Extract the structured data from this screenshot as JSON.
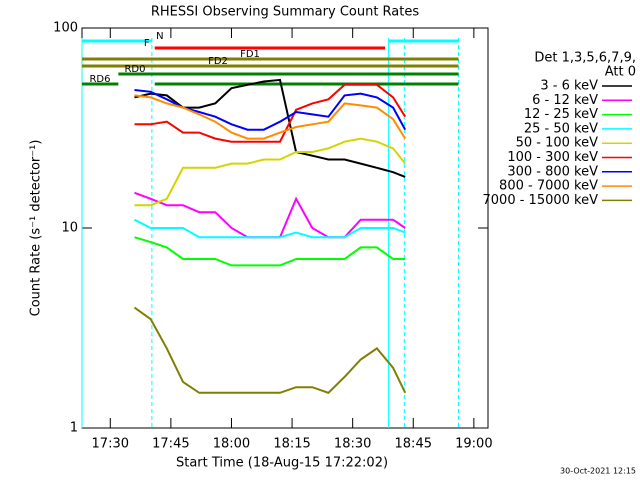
{
  "chart_data": {
    "type": "line",
    "title": "RHESSI Observing Summary Count Rates",
    "x_label": "Start Time (18-Aug-15 17:22:02)",
    "y_label": "Count Rate (s⁻¹ detector⁻¹)",
    "legend_title": [
      "Det 1,3,5,6,7,9,",
      "Att 0"
    ],
    "footer": "30-Oct-2021 12:15",
    "log_y": true,
    "xlim": [
      1043,
      1143.5
    ],
    "xticks": [
      {
        "value": 1050,
        "label": "17:30"
      },
      {
        "value": 1065,
        "label": "17:45"
      },
      {
        "value": 1080,
        "label": "18:00"
      },
      {
        "value": 1095,
        "label": "18:15"
      },
      {
        "value": 1110,
        "label": "18:30"
      },
      {
        "value": 1125,
        "label": "18:45"
      },
      {
        "value": 1140,
        "label": "19:00"
      }
    ],
    "ylim": [
      1,
      100
    ],
    "yticks": [
      1,
      10,
      100
    ],
    "x": [
      1056,
      1060,
      1064,
      1068,
      1072,
      1076,
      1080,
      1084,
      1088,
      1092,
      1096,
      1100,
      1104,
      1108,
      1112,
      1116,
      1120,
      1123
    ],
    "series": [
      {
        "name": "3 - 6 keV",
        "color": "#000000",
        "values": [
          45,
          47,
          46,
          40,
          40,
          42,
          50,
          52,
          54,
          55,
          24,
          23,
          22,
          22,
          21,
          20,
          19,
          18
        ]
      },
      {
        "name": "6 - 12 keV",
        "color": "#ff00ff",
        "values": [
          15,
          14,
          13,
          13,
          12,
          12,
          10,
          9,
          9,
          9,
          14,
          10,
          9,
          9,
          11,
          11,
          11,
          10
        ]
      },
      {
        "name": "12 - 25 keV",
        "color": "#00ff00",
        "values": [
          9,
          8.5,
          8,
          7,
          7,
          7,
          6.5,
          6.5,
          6.5,
          6.5,
          7,
          7,
          7,
          7,
          8,
          8,
          7,
          7
        ]
      },
      {
        "name": "25 - 50 keV",
        "color": "#00ffff",
        "values": [
          11,
          10,
          10,
          10,
          9,
          9,
          9,
          9,
          9,
          9,
          9.5,
          9,
          9,
          9,
          10,
          10,
          10,
          9.5
        ]
      },
      {
        "name": "50 - 100 keV",
        "color": "#d4d400",
        "values": [
          13,
          13,
          14,
          20,
          20,
          20,
          21,
          21,
          22,
          22,
          24,
          24,
          25,
          27,
          28,
          27,
          25,
          21
        ]
      },
      {
        "name": "100 - 300 keV",
        "color": "#ff0000",
        "values": [
          33,
          33,
          34,
          30,
          30,
          28,
          27,
          27,
          27,
          27,
          39,
          42,
          44,
          52,
          52,
          52,
          45,
          36
        ]
      },
      {
        "name": "300 - 800 keV",
        "color": "#0000ff",
        "values": [
          49,
          48,
          44,
          40,
          38,
          36,
          33,
          31,
          31,
          34,
          38,
          37,
          36,
          46,
          47,
          45,
          40,
          31
        ]
      },
      {
        "name": "800 - 7000 keV",
        "color": "#ff8c00",
        "values": [
          46,
          45,
          42,
          40,
          37,
          34,
          30,
          28,
          28,
          30,
          32,
          33,
          34,
          42,
          41,
          40,
          35,
          28
        ]
      },
      {
        "name": "7000 - 15000 keV",
        "color": "#808000",
        "values": [
          4,
          3.5,
          2.5,
          1.7,
          1.5,
          1.5,
          1.5,
          1.5,
          1.5,
          1.5,
          1.6,
          1.6,
          1.5,
          1.8,
          2.2,
          2.5,
          2,
          1.5
        ]
      }
    ],
    "flags": [
      {
        "label": "N",
        "color": "#00ffff",
        "segments": [
          [
            1043,
            1060.3
          ],
          [
            1118.9,
            1136.2
          ]
        ]
      },
      {
        "label": "F",
        "color": "#ff0000",
        "segments": [
          [
            1061,
            1118
          ]
        ]
      },
      {
        "label": "FD1",
        "color": "#808000",
        "segments": [
          [
            1043,
            1136.2
          ]
        ]
      },
      {
        "label": "FD2",
        "color": "#808000",
        "segments": [
          [
            1043,
            1136.2
          ]
        ]
      },
      {
        "label": "RD0",
        "color": "#008000",
        "segments": [
          [
            1052,
            1136.2
          ]
        ]
      },
      {
        "label": "RD6",
        "color": "#008000",
        "segments": [
          [
            1043,
            1052
          ],
          [
            1061,
            1136.2
          ]
        ]
      }
    ],
    "vlines": [
      {
        "x": 1043,
        "style": "solid",
        "color": "#00ffff"
      },
      {
        "x": 1118.9,
        "style": "solid",
        "color": "#00ffff"
      },
      {
        "x": 1060.3,
        "style": "dashed",
        "color": "#00ffff"
      },
      {
        "x": 1122.8,
        "style": "dashed",
        "color": "#00ffff"
      },
      {
        "x": 1136.2,
        "style": "dashed",
        "color": "#00ffff"
      }
    ]
  }
}
